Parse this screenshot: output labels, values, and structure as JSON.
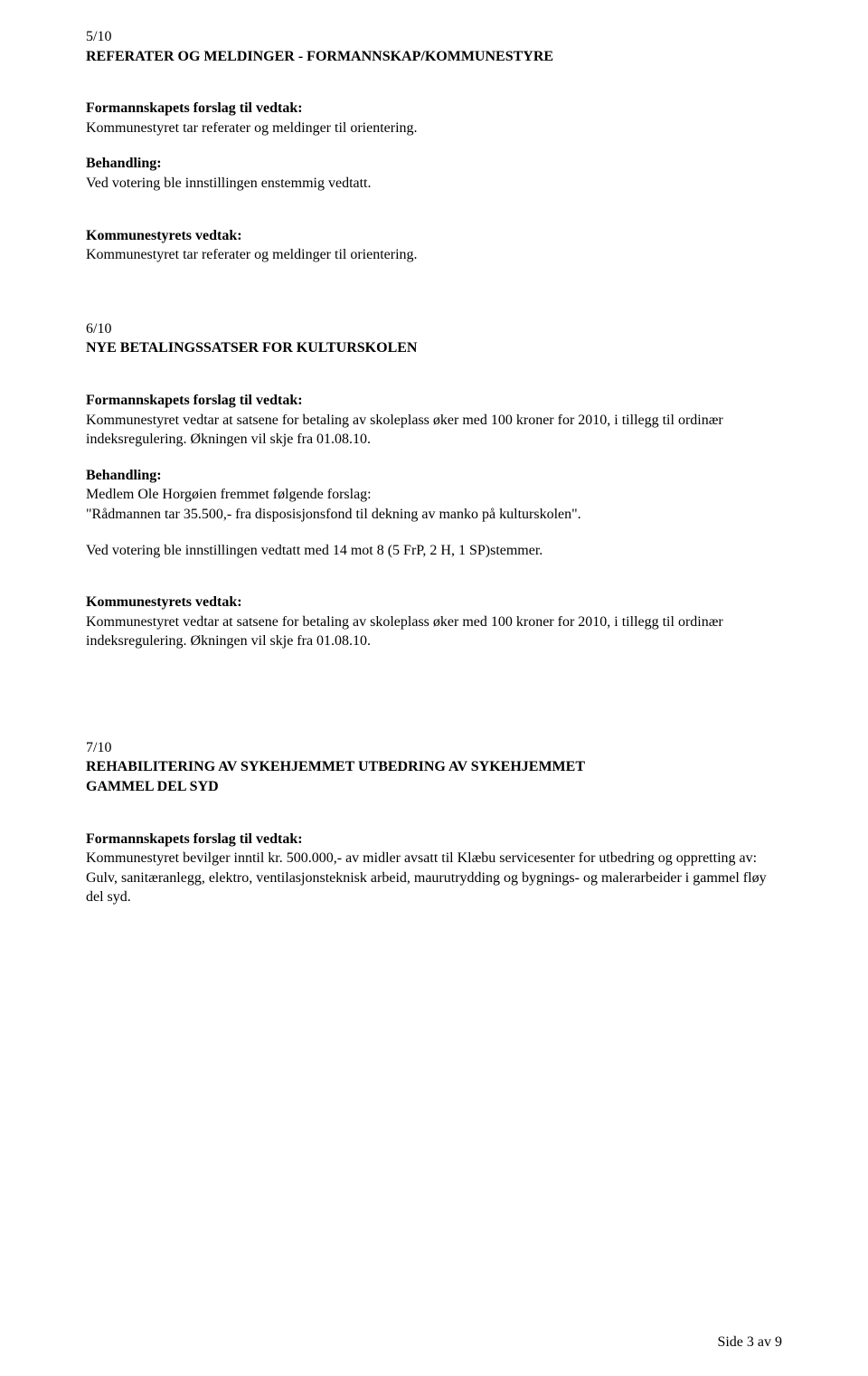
{
  "item510": {
    "number": "5/10",
    "title": "REFERATER OG MELDINGER - FORMANNSKAP/KOMMUNESTYRE",
    "forslagLabel": "Formannskapets forslag til vedtak:",
    "forslagText": "Kommunestyret tar referater og meldinger til orientering.",
    "behandlingLabel": "Behandling:",
    "behandlingText": "Ved votering ble innstillingen enstemmig vedtatt.",
    "vedtakLabel": "Kommunestyrets vedtak:",
    "vedtakText": "Kommunestyret tar referater og meldinger til orientering."
  },
  "item610": {
    "number": "6/10",
    "title": "NYE BETALINGSSATSER FOR KULTURSKOLEN",
    "forslagLabel": "Formannskapets forslag til vedtak:",
    "forslagText": "Kommunestyret vedtar at satsene for betaling av skoleplass øker med 100 kroner for 2010, i tillegg til ordinær indeksregulering. Økningen vil skje fra 01.08.10.",
    "behandlingLabel": "Behandling:",
    "behandlingLine1": "Medlem Ole Horgøien fremmet følgende forslag:",
    "behandlingLine2": "\"Rådmannen tar 35.500,- fra disposisjonsfond til dekning av manko på kulturskolen\".",
    "voteringText": "Ved votering ble innstillingen vedtatt med 14 mot 8 (5 FrP, 2 H, 1 SP)stemmer.",
    "vedtakLabel": "Kommunestyrets vedtak:",
    "vedtakText": "Kommunestyret vedtar at satsene for betaling av skoleplass øker med 100 kroner for 2010, i tillegg til ordinær indeksregulering. Økningen vil skje fra 01.08.10."
  },
  "item710": {
    "number": "7/10",
    "titleLine1": "REHABILITERING AV SYKEHJEMMET  UTBEDRING AV SYKEHJEMMET",
    "titleLine2": "GAMMEL DEL SYD",
    "forslagLabel": "Formannskapets forslag til vedtak:",
    "forslagText": "Kommunestyret bevilger inntil kr. 500.000,- av midler avsatt til Klæbu servicesenter for utbedring og oppretting av: Gulv, sanitæranlegg, elektro, ventilasjonsteknisk arbeid, maurutrydding og bygnings- og malerarbeider i gammel fløy del syd."
  },
  "footer": "Side 3 av 9"
}
